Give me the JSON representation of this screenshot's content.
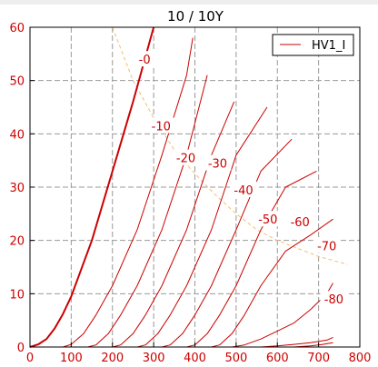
{
  "chart_data": {
    "type": "line",
    "title": "10 / 10Y",
    "xlim": [
      0,
      800
    ],
    "ylim": [
      0,
      60
    ],
    "x_ticks": [
      0,
      100,
      200,
      300,
      400,
      500,
      600,
      700,
      800
    ],
    "y_ticks": [
      0,
      10,
      20,
      30,
      40,
      50,
      60
    ],
    "grid": true,
    "legend": {
      "position": "top-right",
      "entries": [
        "HV1_I"
      ]
    },
    "colors": {
      "curves": "#cc0000",
      "load_line": "#f0c070",
      "grid": "#999999",
      "header_bar": "#eeeeee"
    },
    "series": [
      {
        "name": "HV1_I",
        "label": "-0",
        "points": [
          [
            0,
            0
          ],
          [
            20,
            0.5
          ],
          [
            40,
            1.5
          ],
          [
            60,
            3.5
          ],
          [
            80,
            6.2
          ],
          [
            100,
            9.5
          ],
          [
            150,
            20
          ],
          [
            200,
            33
          ],
          [
            250,
            46
          ],
          [
            300,
            60
          ]
        ]
      },
      {
        "label": "-10",
        "points": [
          [
            0,
            0
          ],
          [
            80,
            0
          ],
          [
            100,
            0.5
          ],
          [
            130,
            2.5
          ],
          [
            160,
            6
          ],
          [
            200,
            11.5
          ],
          [
            260,
            22
          ],
          [
            320,
            36
          ],
          [
            380,
            51
          ],
          [
            395,
            58
          ]
        ]
      },
      {
        "label": "-20",
        "points": [
          [
            0,
            0
          ],
          [
            140,
            0
          ],
          [
            160,
            0.4
          ],
          [
            190,
            2.5
          ],
          [
            220,
            6
          ],
          [
            260,
            11.5
          ],
          [
            320,
            22
          ],
          [
            380,
            36
          ],
          [
            430,
            51
          ]
        ]
      },
      {
        "label": "-30",
        "points": [
          [
            0,
            0
          ],
          [
            200,
            0
          ],
          [
            220,
            0.4
          ],
          [
            250,
            2.5
          ],
          [
            280,
            6
          ],
          [
            320,
            11.5
          ],
          [
            380,
            22
          ],
          [
            440,
            36
          ],
          [
            495,
            46
          ]
        ]
      },
      {
        "label": "-40",
        "points": [
          [
            0,
            0
          ],
          [
            260,
            0
          ],
          [
            280,
            0.4
          ],
          [
            310,
            2.5
          ],
          [
            340,
            6
          ],
          [
            380,
            11.5
          ],
          [
            440,
            22
          ],
          [
            500,
            36
          ],
          [
            575,
            45
          ]
        ]
      },
      {
        "label": "-50",
        "points": [
          [
            0,
            0
          ],
          [
            320,
            0
          ],
          [
            340,
            0.4
          ],
          [
            370,
            2.5
          ],
          [
            400,
            6
          ],
          [
            440,
            11.5
          ],
          [
            500,
            22
          ],
          [
            560,
            33
          ],
          [
            635,
            39
          ]
        ]
      },
      {
        "label": "-60",
        "points": [
          [
            0,
            0
          ],
          [
            380,
            0
          ],
          [
            400,
            0.4
          ],
          [
            430,
            2.5
          ],
          [
            460,
            6
          ],
          [
            500,
            11.5
          ],
          [
            560,
            22
          ],
          [
            620,
            30
          ],
          [
            695,
            33
          ]
        ]
      },
      {
        "label": "-70",
        "points": [
          [
            0,
            0
          ],
          [
            440,
            0
          ],
          [
            460,
            0.4
          ],
          [
            490,
            2.5
          ],
          [
            520,
            6
          ],
          [
            560,
            11.5
          ],
          [
            620,
            18
          ],
          [
            680,
            21
          ],
          [
            735,
            24
          ]
        ]
      },
      {
        "label": "-80",
        "points": [
          [
            0,
            0
          ],
          [
            490,
            0
          ],
          [
            520,
            0.4
          ],
          [
            560,
            1.5
          ],
          [
            600,
            3
          ],
          [
            640,
            4.5
          ],
          [
            680,
            7
          ],
          [
            720,
            10
          ],
          [
            735,
            12
          ]
        ]
      },
      {
        "label": "",
        "points": [
          [
            0,
            0
          ],
          [
            560,
            0
          ],
          [
            600,
            0.2
          ],
          [
            640,
            0.5
          ],
          [
            680,
            0.8
          ],
          [
            720,
            1.3
          ],
          [
            735,
            1.8
          ]
        ]
      },
      {
        "label": "",
        "points": [
          [
            0,
            0
          ],
          [
            640,
            0
          ],
          [
            680,
            0.2
          ],
          [
            710,
            0.5
          ],
          [
            735,
            0.8
          ]
        ]
      }
    ],
    "load_line": {
      "points": [
        [
          200,
          60
        ],
        [
          250,
          50
        ],
        [
          300,
          43
        ],
        [
          350,
          37
        ],
        [
          400,
          32.5
        ],
        [
          450,
          28.5
        ],
        [
          500,
          25
        ],
        [
          550,
          22
        ],
        [
          600,
          20
        ],
        [
          650,
          18.5
        ],
        [
          700,
          17
        ],
        [
          770,
          15.5
        ]
      ]
    },
    "curve_labels": [
      {
        "text": "-0",
        "x": 278,
        "y": 54
      },
      {
        "text": "-10",
        "x": 318,
        "y": 41.5
      },
      {
        "text": "-20",
        "x": 378,
        "y": 35.5
      },
      {
        "text": "-30",
        "x": 455,
        "y": 34.5
      },
      {
        "text": "-40",
        "x": 518,
        "y": 29.5
      },
      {
        "text": "-50",
        "x": 577,
        "y": 24
      },
      {
        "text": "-60",
        "x": 655,
        "y": 23.5
      },
      {
        "text": "-70",
        "x": 720,
        "y": 19
      },
      {
        "text": "-80",
        "x": 737,
        "y": 9
      }
    ]
  }
}
